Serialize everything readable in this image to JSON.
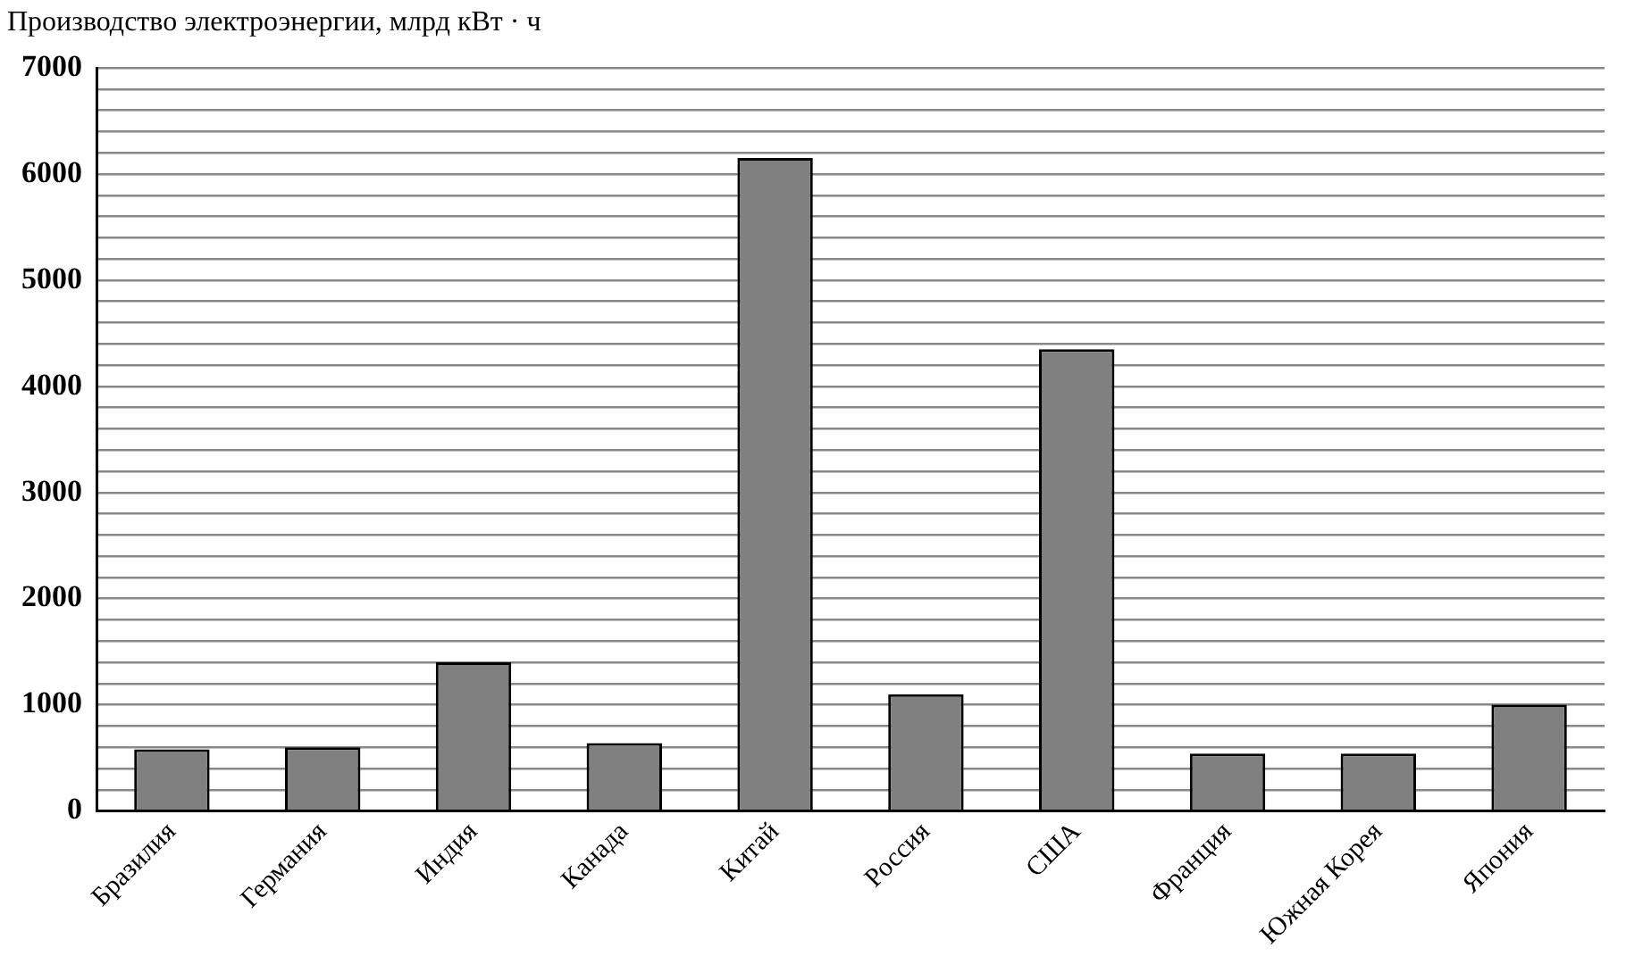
{
  "chart_data": {
    "type": "bar",
    "title": "Производство электроэнергии, млрд  кВт · ч",
    "categories": [
      "Бразилия",
      "Германия",
      "Индия",
      "Канада",
      "Китай",
      "Россия",
      "США",
      "Франция",
      "Южная Корея",
      "Япония"
    ],
    "values": [
      580,
      600,
      1400,
      640,
      6150,
      1100,
      4350,
      540,
      540,
      1000
    ],
    "color": "#808080",
    "ylim": [
      0,
      7000
    ],
    "yticks": [
      0,
      {
        "value": 200,
        "label": null
      },
      {
        "value": 400,
        "label": null
      },
      {
        "value": 600,
        "label": null
      },
      {
        "value": 800,
        "label": null
      },
      1000,
      {
        "value": 1200,
        "label": null
      },
      {
        "value": 1400,
        "label": null
      },
      {
        "value": 1600,
        "label": null
      },
      {
        "value": 1800,
        "label": null
      },
      2000,
      {
        "value": 2200,
        "label": null
      },
      {
        "value": 2400,
        "label": null
      },
      {
        "value": 2600,
        "label": null
      },
      {
        "value": 2800,
        "label": null
      },
      3000,
      {
        "value": 3200,
        "label": null
      },
      {
        "value": 3400,
        "label": null
      },
      {
        "value": 3600,
        "label": null
      },
      {
        "value": 3800,
        "label": null
      },
      4000,
      {
        "value": 4200,
        "label": null
      },
      {
        "value": 4400,
        "label": null
      },
      {
        "value": 4600,
        "label": null
      },
      {
        "value": 4800,
        "label": null
      },
      5000,
      {
        "value": 5200,
        "label": null
      },
      {
        "value": 5400,
        "label": null
      },
      {
        "value": 5600,
        "label": null
      },
      {
        "value": 5800,
        "label": null
      },
      6000,
      {
        "value": 6200,
        "label": null
      },
      {
        "value": 6400,
        "label": null
      },
      {
        "value": 6600,
        "label": null
      },
      {
        "value": 6800,
        "label": null
      },
      7000
    ],
    "grid": "y",
    "legend": false
  }
}
